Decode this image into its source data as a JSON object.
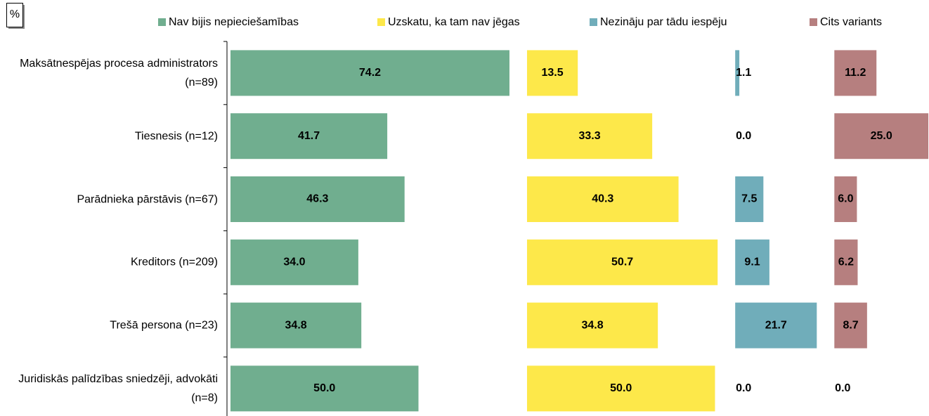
{
  "chart_data": {
    "type": "bar",
    "orientation": "horizontal",
    "layout": "panels",
    "unit_label": "%",
    "categories": [
      "Maksātnespējas procesa administrators (n=89)",
      "Tiesnesis (n=12)",
      "Parādnieka pārstāvis (n=67)",
      "Kreditors (n=209)",
      "Trešā persona (n=23)",
      "Juridiskās palīdzības sniedzēji, advokāti (n=8)"
    ],
    "series": [
      {
        "name": "Nav bijis nepieciešamības",
        "color": "#70ae8f",
        "values": [
          74.2,
          41.7,
          46.3,
          34.0,
          34.8,
          50.0
        ],
        "value_labels": [
          "74.2",
          "41.7",
          "46.3",
          "34.0",
          "34.8",
          "50.0"
        ]
      },
      {
        "name": "Uzskatu, ka tam nav jēgas",
        "color": "#fde84a",
        "values": [
          13.5,
          33.3,
          40.3,
          50.7,
          34.8,
          50.0
        ],
        "value_labels": [
          "13.5",
          "33.3",
          "40.3",
          "50.7",
          "34.8",
          "50.0"
        ]
      },
      {
        "name": "Nezināju par tādu iespēju",
        "color": "#70adba",
        "values": [
          1.1,
          0.0,
          7.5,
          9.1,
          21.7,
          0.0
        ],
        "value_labels": [
          "1.1",
          "0.0",
          "7.5",
          "9.1",
          "21.7",
          "0.0"
        ]
      },
      {
        "name": "Cits variants",
        "color": "#b67f7f",
        "values": [
          11.2,
          25.0,
          6.0,
          6.2,
          8.7,
          0.0
        ],
        "value_labels": [
          "11.2",
          "25.0",
          "6.0",
          "6.2",
          "8.7",
          "0.0"
        ]
      }
    ]
  }
}
